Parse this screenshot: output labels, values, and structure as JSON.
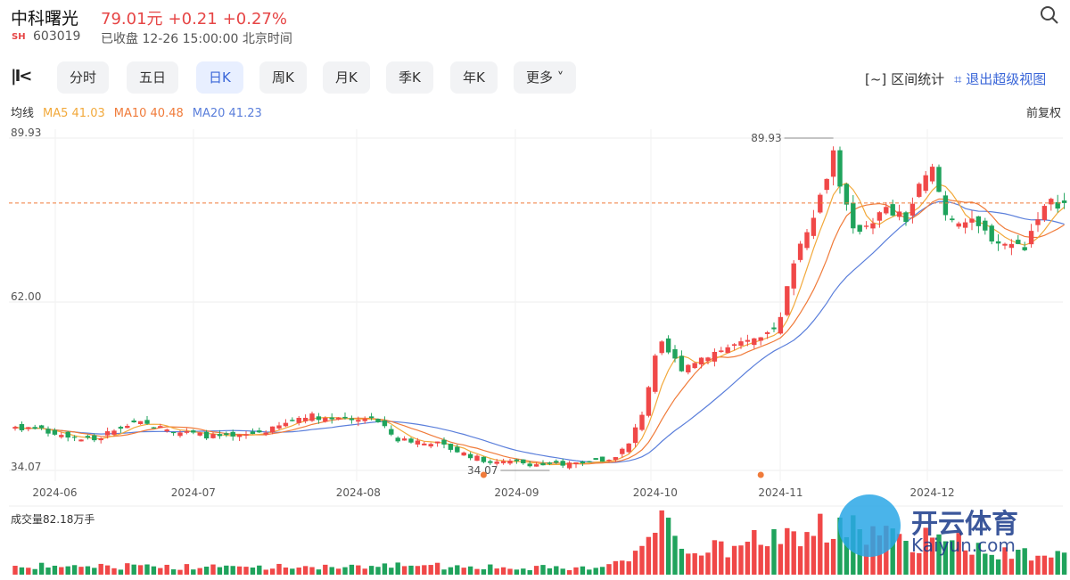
{
  "header": {
    "name": "中科曙光",
    "price": "79.01元",
    "change": "+0.21",
    "change_pct": "+0.27%",
    "market": "SH",
    "code": "603019",
    "status": "已收盘 12-26 15:00:00 北京时间"
  },
  "toolbar": {
    "tabs": [
      {
        "label": "分时"
      },
      {
        "label": "五日"
      },
      {
        "label": "日K",
        "active": true
      },
      {
        "label": "周K"
      },
      {
        "label": "月K"
      },
      {
        "label": "季K"
      },
      {
        "label": "年K"
      },
      {
        "label": "更多"
      }
    ],
    "range_stat": "区间统计",
    "exit_view": "退出超级视图",
    "range_icon": "[~]"
  },
  "ma": {
    "label": "均线",
    "ma5": "MA5 41.03",
    "ma10": "MA10 40.48",
    "ma20": "MA20 41.23",
    "adjust": "前复权"
  },
  "volume": {
    "label": "成交量82.18万手"
  },
  "watermark": {
    "text": "开云体育",
    "sub": "Kaiyun.com"
  },
  "colors": {
    "up": "#f04848",
    "down": "#1fa35c",
    "ma5": "#f2a93b",
    "ma10": "#f07b3a",
    "ma20": "#5b7fdb",
    "accent": "#3a66d8"
  },
  "chart_data": {
    "type": "candlestick",
    "y_ticks": [
      "89.93",
      "62.00",
      "34.07"
    ],
    "ylim": [
      34.07,
      89.93
    ],
    "x_ticks": [
      "2024-06",
      "2024-07",
      "2024-08",
      "2024-09",
      "2024-10",
      "2024-11",
      "2024-12"
    ],
    "x_tick_index": [
      6,
      27,
      52,
      76,
      97,
      116,
      139
    ],
    "candle_count": 160,
    "high_label": "89.93",
    "high_index": 124,
    "low_label": "34.07",
    "low_index": 81,
    "last_close": 79.01,
    "close_keypoints": [
      [
        0,
        41.4
      ],
      [
        6,
        40.4
      ],
      [
        12,
        39.2
      ],
      [
        18,
        42.2
      ],
      [
        24,
        40.7
      ],
      [
        29,
        39.9
      ],
      [
        33,
        39.5
      ],
      [
        39,
        41.0
      ],
      [
        44,
        43.4
      ],
      [
        49,
        42.5
      ],
      [
        54,
        43.0
      ],
      [
        58,
        39.2
      ],
      [
        63,
        38.9
      ],
      [
        68,
        36.9
      ],
      [
        72,
        35.4
      ],
      [
        76,
        35.4
      ],
      [
        81,
        34.9
      ],
      [
        85,
        35.4
      ],
      [
        90,
        35.8
      ],
      [
        93,
        38.4
      ],
      [
        95,
        43.7
      ],
      [
        97,
        52.8
      ],
      [
        98,
        55.1
      ],
      [
        101,
        51.3
      ],
      [
        105,
        53.6
      ],
      [
        109,
        55.1
      ],
      [
        113,
        55.8
      ],
      [
        116,
        59.6
      ],
      [
        118,
        69.5
      ],
      [
        120,
        74.8
      ],
      [
        122,
        80.1
      ],
      [
        124,
        87.7
      ],
      [
        125,
        82.4
      ],
      [
        127,
        74.0
      ],
      [
        129,
        75.5
      ],
      [
        132,
        77.8
      ],
      [
        135,
        76.3
      ],
      [
        137,
        81.6
      ],
      [
        139,
        84.6
      ],
      [
        141,
        77.0
      ],
      [
        145,
        75.5
      ],
      [
        149,
        72.5
      ],
      [
        153,
        71.7
      ],
      [
        155,
        77.0
      ],
      [
        157,
        79.0
      ],
      [
        159,
        79.01
      ]
    ],
    "volume_keypoints_wan": [
      [
        0,
        40
      ],
      [
        30,
        35
      ],
      [
        60,
        40
      ],
      [
        85,
        30
      ],
      [
        93,
        60
      ],
      [
        97,
        150
      ],
      [
        98,
        250
      ],
      [
        101,
        120
      ],
      [
        110,
        110
      ],
      [
        115,
        200
      ],
      [
        120,
        180
      ],
      [
        124,
        220
      ],
      [
        130,
        180
      ],
      [
        140,
        150
      ],
      [
        150,
        110
      ],
      [
        159,
        82.18
      ]
    ]
  }
}
